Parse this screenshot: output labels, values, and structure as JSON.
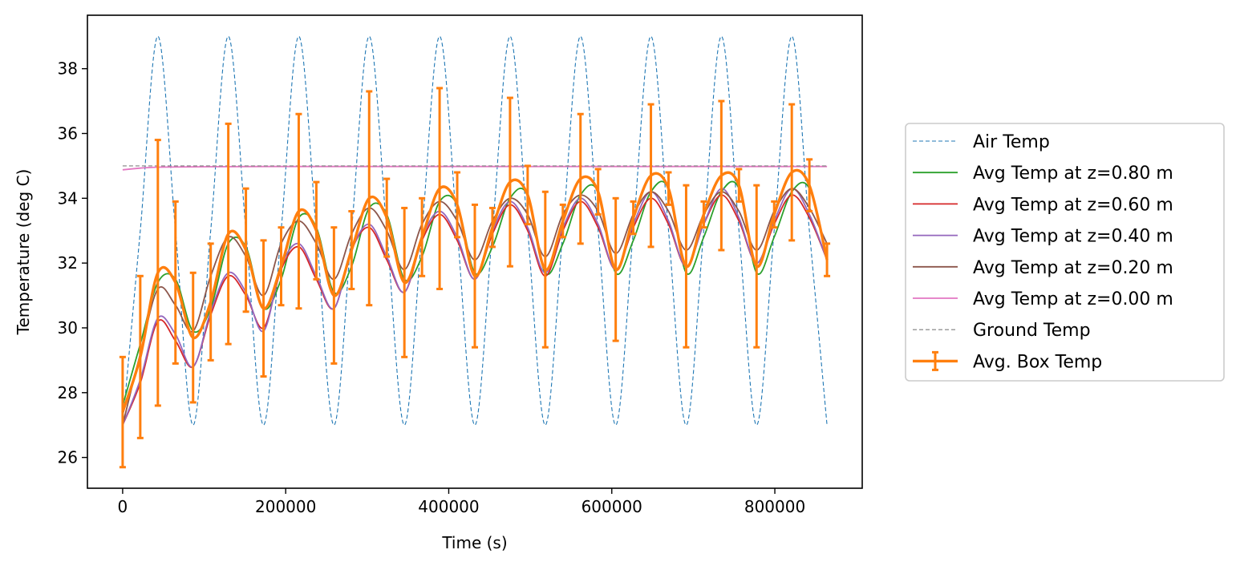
{
  "chart_data": {
    "type": "line",
    "xlabel": "Time (s)",
    "ylabel": "Temperature (deg C)",
    "xlim": [
      -43200,
      907200
    ],
    "ylim": [
      25.05,
      39.65
    ],
    "x_ticks": [
      0,
      200000,
      400000,
      600000,
      800000
    ],
    "x_tick_labels": [
      "0",
      "200000",
      "400000",
      "600000",
      "800000"
    ],
    "y_ticks": [
      26,
      28,
      30,
      32,
      34,
      36,
      38
    ],
    "y_tick_labels": [
      "26",
      "28",
      "30",
      "32",
      "34",
      "36",
      "38"
    ],
    "grid": false,
    "legend_position": "right-outside",
    "series": [
      {
        "name": "Air Temp",
        "color": "#1f77b4",
        "style": "dashed",
        "x": [
          0,
          21600,
          43200,
          64800,
          86400,
          108000,
          129600,
          151200,
          172800,
          194400,
          216000,
          237600,
          259200,
          280800,
          302400,
          324000,
          345600,
          367200,
          388800,
          410400,
          432000,
          453600,
          475200,
          496800,
          518400,
          540000,
          561600,
          583200,
          604800,
          626400,
          648000,
          669600,
          691200,
          712800,
          734400,
          756000,
          777600,
          799200,
          820800,
          842400,
          864000
        ],
        "y": [
          27.0,
          33.0,
          39.0,
          33.0,
          27.0,
          33.0,
          39.0,
          33.0,
          27.0,
          33.0,
          39.0,
          33.0,
          27.0,
          33.0,
          39.0,
          33.0,
          27.0,
          33.0,
          39.0,
          33.0,
          27.0,
          33.0,
          39.0,
          33.0,
          27.0,
          33.0,
          39.0,
          33.0,
          27.0,
          33.0,
          39.0,
          33.0,
          27.0,
          33.0,
          39.0,
          33.0,
          27.0,
          33.0,
          39.0,
          33.0,
          27.0
        ]
      },
      {
        "name": "Avg Temp at z=0.80 m",
        "color": "#2ca02c",
        "style": "solid",
        "x": [
          0,
          21600,
          43200,
          64800,
          86400,
          108000,
          129600,
          151200,
          172800,
          194400,
          216000,
          237600,
          259200,
          280800,
          302400,
          324000,
          345600,
          367200,
          388800,
          410400,
          432000,
          453600,
          475200,
          496800,
          518400,
          540000,
          561600,
          583200,
          604800,
          626400,
          648000,
          669600,
          691200,
          712800,
          734400,
          756000,
          777600,
          799200,
          820800,
          842400,
          864000
        ],
        "y": [
          27.6,
          29.5,
          31.4,
          31.5,
          29.9,
          30.6,
          32.6,
          32.5,
          30.6,
          31.5,
          33.4,
          33.1,
          31.1,
          31.9,
          33.7,
          33.5,
          31.5,
          32.2,
          33.9,
          33.8,
          31.7,
          32.5,
          34.0,
          34.1,
          31.7,
          32.6,
          34.1,
          34.2,
          31.7,
          32.7,
          34.2,
          34.3,
          31.7,
          32.8,
          34.2,
          34.3,
          31.7,
          32.8,
          34.2,
          34.3,
          32.1
        ]
      },
      {
        "name": "Avg Temp at z=0.60 m",
        "color": "#d62728",
        "style": "solid",
        "x": [
          0,
          21600,
          43200,
          64800,
          86400,
          108000,
          129600,
          151200,
          172800,
          194400,
          216000,
          237600,
          259200,
          280800,
          302400,
          324000,
          345600,
          367200,
          388800,
          410400,
          432000,
          453600,
          475200,
          496800,
          518400,
          540000,
          561600,
          583200,
          604800,
          626400,
          648000,
          669600,
          691200,
          712800,
          734400,
          756000,
          777600,
          799200,
          820800,
          842400,
          864000
        ],
        "y": [
          27.0,
          28.3,
          30.2,
          29.6,
          28.8,
          30.4,
          31.6,
          31.0,
          30.0,
          31.8,
          32.5,
          31.5,
          30.6,
          32.4,
          33.1,
          32.1,
          31.1,
          32.7,
          33.5,
          32.7,
          31.5,
          32.9,
          33.8,
          33.0,
          31.6,
          33.0,
          33.9,
          33.1,
          31.8,
          33.1,
          34.0,
          33.2,
          31.9,
          33.2,
          34.1,
          33.3,
          32.0,
          33.2,
          34.1,
          33.4,
          32.1
        ]
      },
      {
        "name": "Avg Temp at z=0.40 m",
        "color": "#9467bd",
        "style": "solid",
        "x": [
          0,
          21600,
          43200,
          64800,
          86400,
          108000,
          129600,
          151200,
          172800,
          194400,
          216000,
          237600,
          259200,
          280800,
          302400,
          324000,
          345600,
          367200,
          388800,
          410400,
          432000,
          453600,
          475200,
          496800,
          518400,
          540000,
          561600,
          583200,
          604800,
          626400,
          648000,
          669600,
          691200,
          712800,
          734400,
          756000,
          777600,
          799200,
          820800,
          842400,
          864000
        ],
        "y": [
          27.0,
          28.4,
          30.3,
          29.8,
          28.8,
          30.5,
          31.7,
          31.1,
          29.9,
          31.9,
          32.6,
          31.6,
          30.6,
          32.4,
          33.2,
          32.2,
          31.1,
          32.8,
          33.6,
          32.8,
          31.5,
          33.0,
          33.9,
          33.1,
          31.7,
          33.1,
          34.0,
          33.2,
          31.8,
          33.2,
          34.2,
          33.3,
          31.9,
          33.2,
          34.3,
          33.4,
          32.0,
          33.3,
          34.3,
          33.5,
          32.1
        ]
      },
      {
        "name": "Avg Temp at z=0.20 m",
        "color": "#8c564b",
        "style": "solid",
        "x": [
          0,
          21600,
          43200,
          64800,
          86400,
          108000,
          129600,
          151200,
          172800,
          194400,
          216000,
          237600,
          259200,
          280800,
          302400,
          324000,
          345600,
          367200,
          388800,
          410400,
          432000,
          453600,
          475200,
          496800,
          518400,
          540000,
          561600,
          583200,
          604800,
          626400,
          648000,
          669600,
          691200,
          712800,
          734400,
          756000,
          777600,
          799200,
          820800,
          842400,
          864000
        ],
        "y": [
          27.0,
          29.2,
          31.2,
          30.7,
          29.9,
          31.6,
          32.8,
          32.2,
          31.0,
          32.6,
          33.3,
          32.6,
          31.5,
          32.9,
          33.7,
          33.0,
          31.8,
          33.2,
          33.9,
          33.3,
          32.1,
          33.3,
          34.0,
          33.5,
          32.2,
          33.5,
          34.1,
          33.6,
          32.3,
          33.5,
          34.2,
          33.6,
          32.4,
          33.5,
          34.2,
          33.6,
          32.4,
          33.6,
          34.3,
          33.7,
          32.6
        ]
      },
      {
        "name": "Avg Temp at z=0.00 m",
        "color": "#e377c2",
        "style": "solid",
        "x": [
          0,
          21600,
          43200,
          86400,
          172800,
          259200,
          345600,
          432000,
          518400,
          604800,
          691200,
          777600,
          864000
        ],
        "y": [
          34.88,
          34.93,
          34.96,
          34.97,
          34.98,
          34.98,
          34.98,
          34.98,
          34.98,
          34.98,
          34.98,
          34.98,
          34.98
        ]
      },
      {
        "name": "Ground Temp",
        "color": "#7f7f7f",
        "style": "dashed",
        "x": [
          0,
          864000
        ],
        "y": [
          35.0,
          35.0
        ]
      },
      {
        "name": "Avg. Box Temp",
        "color": "#ff7f0e",
        "style": "solid-errorbar",
        "x": [
          0,
          21600,
          43200,
          64800,
          86400,
          108000,
          129600,
          151200,
          172800,
          194400,
          216000,
          237600,
          259200,
          280800,
          302400,
          324000,
          345600,
          367200,
          388800,
          410400,
          432000,
          453600,
          475200,
          496800,
          518400,
          540000,
          561600,
          583200,
          604800,
          626400,
          648000,
          669600,
          691200,
          712800,
          734400,
          756000,
          777600,
          799200,
          820800,
          842400,
          864000
        ],
        "y": [
          27.4,
          29.1,
          31.7,
          31.4,
          29.7,
          30.8,
          32.9,
          32.4,
          30.6,
          31.9,
          33.6,
          33.0,
          31.0,
          32.4,
          34.0,
          33.4,
          31.4,
          32.8,
          34.3,
          33.8,
          31.6,
          33.1,
          34.5,
          34.1,
          31.8,
          33.3,
          34.6,
          34.2,
          31.8,
          33.4,
          34.7,
          34.3,
          31.9,
          33.5,
          34.7,
          34.4,
          31.9,
          33.5,
          34.8,
          34.4,
          32.1
        ],
        "err": [
          1.7,
          2.5,
          4.1,
          2.5,
          2.0,
          1.8,
          3.4,
          1.9,
          2.1,
          1.2,
          3.0,
          1.5,
          2.1,
          1.2,
          3.3,
          1.2,
          2.3,
          1.2,
          3.1,
          1.0,
          2.2,
          0.6,
          2.6,
          0.9,
          2.4,
          0.5,
          2.0,
          0.7,
          2.2,
          0.5,
          2.2,
          0.5,
          2.5,
          0.4,
          2.3,
          0.5,
          2.5,
          0.4,
          2.1,
          0.8,
          0.5
        ]
      }
    ]
  }
}
